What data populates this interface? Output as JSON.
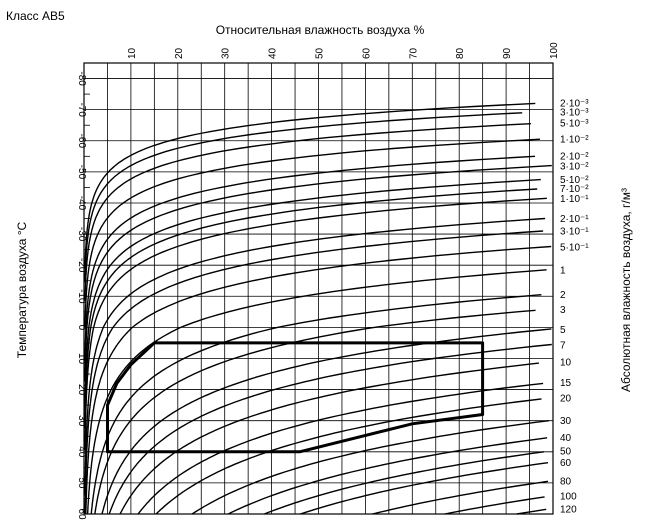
{
  "chart_data": {
    "type": "line",
    "class_label": "Класс AB5",
    "title": "Относительная влажность воздуха %",
    "xlabel": "Относительная влажность воздуха %",
    "ylabel_left": "Температура воздуха °C",
    "ylabel_right": "Абсолютная влажность воздуха, г/м³",
    "x_ticks": [
      "10",
      "20",
      "30",
      "40",
      "50",
      "60",
      "70",
      "80",
      "90",
      "100"
    ],
    "xlim": [
      0,
      100
    ],
    "y_ticks": [
      "-80",
      "-70",
      "-60",
      "-50",
      "-40",
      "-30",
      "-20",
      "-10",
      "0",
      "10",
      "20",
      "30",
      "40",
      "50",
      "60"
    ],
    "ylim": [
      -85,
      60
    ],
    "abs_humidity_labels": [
      "2·10⁻³",
      "3·10⁻³",
      "5·10⁻³",
      "1·10⁻²",
      "2·10⁻²",
      "3·10⁻²",
      "5·10⁻²",
      "7·10⁻²",
      "1·10⁻¹",
      "2·10⁻¹",
      "3·10⁻¹",
      "5·10⁻¹",
      "1",
      "2",
      "3",
      "5",
      "7",
      "10",
      "15",
      "20",
      "30",
      "40",
      "50",
      "60",
      "80",
      "100",
      "120"
    ],
    "abs_humidity_values": [
      0.002,
      0.003,
      0.005,
      0.01,
      0.02,
      0.03,
      0.05,
      0.07,
      0.1,
      0.2,
      0.3,
      0.5,
      1,
      2,
      3,
      5,
      7,
      10,
      15,
      20,
      30,
      40,
      50,
      60,
      80,
      100,
      120
    ],
    "grid": true,
    "series": [
      {
        "type": "envelope",
        "x": [
          5,
          5,
          7,
          10,
          15,
          85,
          85,
          70,
          46,
          5
        ],
        "y": [
          40,
          25,
          18,
          12,
          5,
          5,
          28,
          31,
          40,
          40
        ]
      }
    ]
  }
}
